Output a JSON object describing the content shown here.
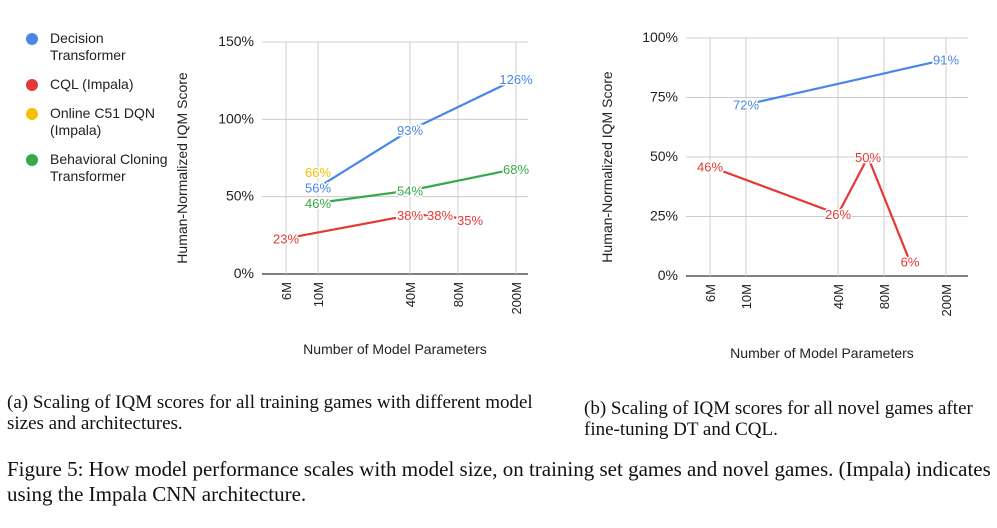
{
  "colors": {
    "blue": "#4a86e8",
    "red": "#e53935",
    "yellow": "#f6c000",
    "green": "#38a84a",
    "grid": "#cccccc",
    "axis": "#333333"
  },
  "legend": [
    {
      "label": "Decision Transformer",
      "color": "#4a86e8"
    },
    {
      "label": "CQL (Impala)",
      "color": "#e53935"
    },
    {
      "label": "Online C51 DQN (Impala)",
      "color": "#f6c000"
    },
    {
      "label": "Behavioral Cloning Transformer",
      "color": "#38a84a"
    }
  ],
  "chart_data": [
    {
      "type": "line",
      "xlabel": "Number of Model Parameters",
      "ylabel": "Human-Normalized IQM Score",
      "x_scale": "log",
      "x_ticks": [
        "6M",
        "10M",
        "40M",
        "80M",
        "200M"
      ],
      "y_ticks": [
        "0%",
        "50%",
        "100%",
        "150%"
      ],
      "ylim": [
        0,
        150
      ],
      "grid": true,
      "series": [
        {
          "name": "Decision Transformer",
          "color": "#4a86e8",
          "x": [
            10,
            40,
            200
          ],
          "y": [
            56,
            93,
            126
          ],
          "labels": [
            "56%",
            "93%",
            "126%"
          ]
        },
        {
          "name": "CQL (Impala)",
          "color": "#e53935",
          "x": [
            6,
            40,
            60,
            100
          ],
          "y": [
            23,
            38,
            38,
            35
          ],
          "labels": [
            "23%",
            "38%",
            "38%",
            "35%"
          ]
        },
        {
          "name": "Online C51 DQN (Impala)",
          "color": "#f6c000",
          "x": [
            10
          ],
          "y": [
            66
          ],
          "labels": [
            "66%"
          ]
        },
        {
          "name": "Behavioral Cloning Transformer",
          "color": "#38a84a",
          "x": [
            10,
            40,
            200
          ],
          "y": [
            46,
            54,
            68
          ],
          "labels": [
            "46%",
            "54%",
            "68%"
          ]
        }
      ]
    },
    {
      "type": "line",
      "xlabel": "Number of Model Parameters",
      "ylabel": "Human-Normalized IQM Score",
      "x_scale": "log",
      "x_ticks": [
        "6M",
        "10M",
        "40M",
        "80M",
        "200M"
      ],
      "y_ticks": [
        "0%",
        "25%",
        "50%",
        "75%",
        "100%"
      ],
      "ylim": [
        0,
        100
      ],
      "grid": true,
      "series": [
        {
          "name": "Decision Transformer",
          "color": "#4a86e8",
          "x": [
            10,
            200
          ],
          "y": [
            72,
            91
          ],
          "labels": [
            "72%",
            "91%"
          ]
        },
        {
          "name": "CQL (Impala)",
          "color": "#e53935",
          "x": [
            6,
            40,
            60,
            100
          ],
          "y": [
            46,
            26,
            50,
            6
          ],
          "labels": [
            "46%",
            "26%",
            "50%",
            "6%"
          ]
        }
      ]
    }
  ],
  "captions": {
    "a": "(a) Scaling of IQM scores for all training games with different model sizes and architectures.",
    "b": "(b) Scaling of IQM scores for all novel games after fine-tuning DT and CQL.",
    "figure": "Figure 5: How model performance scales with model size, on training set games and novel games. (Impala) indicates using the Impala CNN architecture."
  }
}
